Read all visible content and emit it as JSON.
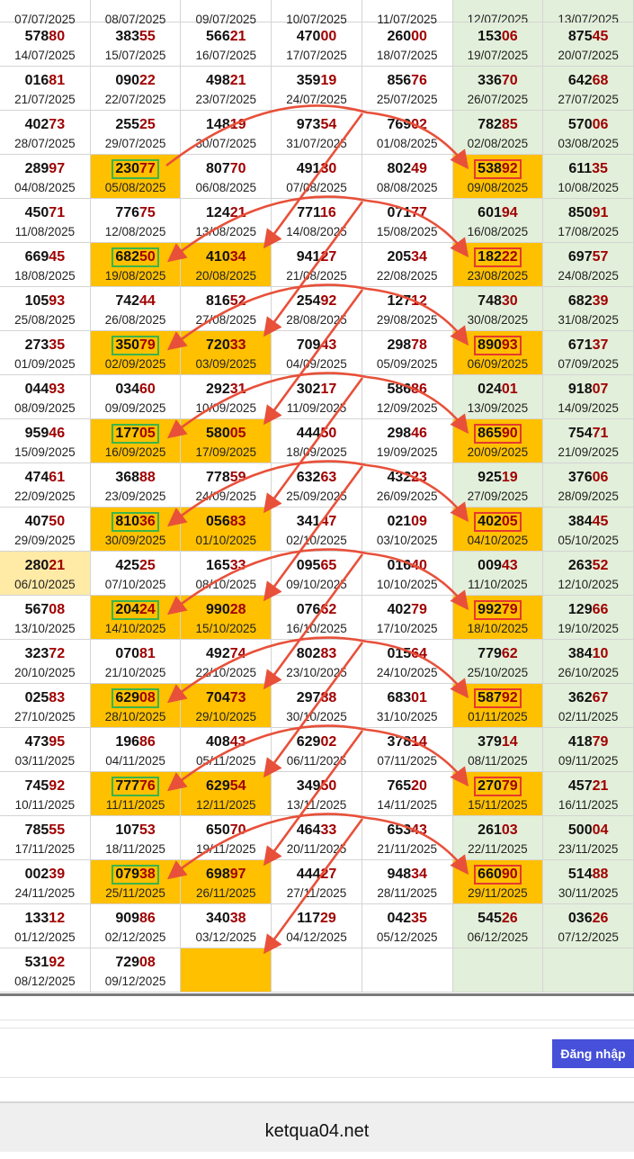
{
  "colors": {
    "yellow": "#ffc000",
    "green_column": "#e2efda",
    "red_digits": "#a00000",
    "arrow": "#e8503a",
    "green_box": "#3cb44b",
    "red_box": "#e5392f",
    "login_button": "#4650d8"
  },
  "table": {
    "rows": [
      {
        "cells": [
          {
            "num": "",
            "date": "07/07/2025"
          },
          {
            "num": "",
            "date": "08/07/2025"
          },
          {
            "num": "",
            "date": "09/07/2025"
          },
          {
            "num": "",
            "date": "10/07/2025"
          },
          {
            "num": "",
            "date": "11/07/2025"
          },
          {
            "num": "",
            "date": "12/07/2025"
          },
          {
            "num": "",
            "date": "13/07/2025"
          }
        ]
      },
      {
        "cells": [
          {
            "num": "57880",
            "date": "14/07/2025"
          },
          {
            "num": "38355",
            "date": "15/07/2025"
          },
          {
            "num": "56621",
            "date": "16/07/2025"
          },
          {
            "num": "47000",
            "date": "17/07/2025"
          },
          {
            "num": "26000",
            "date": "18/07/2025"
          },
          {
            "num": "15306",
            "date": "19/07/2025"
          },
          {
            "num": "87545",
            "date": "20/07/2025"
          }
        ]
      },
      {
        "cells": [
          {
            "num": "01681",
            "date": "21/07/2025"
          },
          {
            "num": "09022",
            "date": "22/07/2025"
          },
          {
            "num": "49821",
            "date": "23/07/2025"
          },
          {
            "num": "35919",
            "date": "24/07/2025"
          },
          {
            "num": "85676",
            "date": "25/07/2025"
          },
          {
            "num": "33670",
            "date": "26/07/2025"
          },
          {
            "num": "64268",
            "date": "27/07/2025"
          }
        ]
      },
      {
        "cells": [
          {
            "num": "40273",
            "date": "28/07/2025"
          },
          {
            "num": "25525",
            "date": "29/07/2025"
          },
          {
            "num": "14819",
            "date": "30/07/2025"
          },
          {
            "num": "97354",
            "date": "31/07/2025"
          },
          {
            "num": "76902",
            "date": "01/08/2025"
          },
          {
            "num": "78285",
            "date": "02/08/2025"
          },
          {
            "num": "57006",
            "date": "03/08/2025"
          }
        ]
      },
      {
        "cells": [
          {
            "num": "28997",
            "date": "04/08/2025"
          },
          {
            "num": "23077",
            "date": "05/08/2025",
            "hl": "green-box"
          },
          {
            "num": "80770",
            "date": "06/08/2025"
          },
          {
            "num": "49130",
            "date": "07/08/2025"
          },
          {
            "num": "80249",
            "date": "08/08/2025"
          },
          {
            "num": "53892",
            "date": "09/08/2025",
            "hl": "red-box"
          },
          {
            "num": "61135",
            "date": "10/08/2025"
          }
        ]
      },
      {
        "cells": [
          {
            "num": "45071",
            "date": "11/08/2025"
          },
          {
            "num": "77675",
            "date": "12/08/2025"
          },
          {
            "num": "12421",
            "date": "13/08/2025"
          },
          {
            "num": "77116",
            "date": "14/08/2025"
          },
          {
            "num": "07177",
            "date": "15/08/2025"
          },
          {
            "num": "60194",
            "date": "16/08/2025"
          },
          {
            "num": "85091",
            "date": "17/08/2025"
          }
        ]
      },
      {
        "cells": [
          {
            "num": "66945",
            "date": "18/08/2025"
          },
          {
            "num": "68250",
            "date": "19/08/2025",
            "hl": "green-box"
          },
          {
            "num": "41034",
            "date": "20/08/2025",
            "hl": "yellow"
          },
          {
            "num": "94127",
            "date": "21/08/2025"
          },
          {
            "num": "20534",
            "date": "22/08/2025"
          },
          {
            "num": "18222",
            "date": "23/08/2025",
            "hl": "red-box"
          },
          {
            "num": "69757",
            "date": "24/08/2025"
          }
        ]
      },
      {
        "cells": [
          {
            "num": "10593",
            "date": "25/08/2025"
          },
          {
            "num": "74244",
            "date": "26/08/2025"
          },
          {
            "num": "81652",
            "date": "27/08/2025"
          },
          {
            "num": "25492",
            "date": "28/08/2025"
          },
          {
            "num": "12712",
            "date": "29/08/2025"
          },
          {
            "num": "74830",
            "date": "30/08/2025"
          },
          {
            "num": "68239",
            "date": "31/08/2025"
          }
        ]
      },
      {
        "cells": [
          {
            "num": "27335",
            "date": "01/09/2025"
          },
          {
            "num": "35079",
            "date": "02/09/2025",
            "hl": "green-box"
          },
          {
            "num": "72033",
            "date": "03/09/2025",
            "hl": "yellow"
          },
          {
            "num": "70943",
            "date": "04/09/2025"
          },
          {
            "num": "29878",
            "date": "05/09/2025"
          },
          {
            "num": "89093",
            "date": "06/09/2025",
            "hl": "red-box"
          },
          {
            "num": "67137",
            "date": "07/09/2025"
          }
        ]
      },
      {
        "cells": [
          {
            "num": "04493",
            "date": "08/09/2025"
          },
          {
            "num": "03460",
            "date": "09/09/2025"
          },
          {
            "num": "29231",
            "date": "10/09/2025"
          },
          {
            "num": "30217",
            "date": "11/09/2025"
          },
          {
            "num": "58686",
            "date": "12/09/2025"
          },
          {
            "num": "02401",
            "date": "13/09/2025"
          },
          {
            "num": "91807",
            "date": "14/09/2025"
          }
        ]
      },
      {
        "cells": [
          {
            "num": "95946",
            "date": "15/09/2025"
          },
          {
            "num": "17705",
            "date": "16/09/2025",
            "hl": "green-box"
          },
          {
            "num": "58005",
            "date": "17/09/2025",
            "hl": "yellow"
          },
          {
            "num": "44450",
            "date": "18/09/2025"
          },
          {
            "num": "29846",
            "date": "19/09/2025"
          },
          {
            "num": "86590",
            "date": "20/09/2025",
            "hl": "red-box"
          },
          {
            "num": "75471",
            "date": "21/09/2025"
          }
        ]
      },
      {
        "cells": [
          {
            "num": "47461",
            "date": "22/09/2025"
          },
          {
            "num": "36888",
            "date": "23/09/2025"
          },
          {
            "num": "77859",
            "date": "24/09/2025"
          },
          {
            "num": "63263",
            "date": "25/09/2025"
          },
          {
            "num": "43223",
            "date": "26/09/2025"
          },
          {
            "num": "92519",
            "date": "27/09/2025"
          },
          {
            "num": "37606",
            "date": "28/09/2025"
          }
        ]
      },
      {
        "cells": [
          {
            "num": "40750",
            "date": "29/09/2025"
          },
          {
            "num": "81036",
            "date": "30/09/2025",
            "hl": "green-box"
          },
          {
            "num": "05683",
            "date": "01/10/2025",
            "hl": "yellow"
          },
          {
            "num": "34147",
            "date": "02/10/2025"
          },
          {
            "num": "02109",
            "date": "03/10/2025"
          },
          {
            "num": "40205",
            "date": "04/10/2025",
            "hl": "red-box"
          },
          {
            "num": "38445",
            "date": "05/10/2025"
          }
        ]
      },
      {
        "cells": [
          {
            "num": "28021",
            "date": "06/10/2025",
            "hl": "light-yellow"
          },
          {
            "num": "42525",
            "date": "07/10/2025"
          },
          {
            "num": "16533",
            "date": "08/10/2025"
          },
          {
            "num": "09565",
            "date": "09/10/2025"
          },
          {
            "num": "01640",
            "date": "10/10/2025"
          },
          {
            "num": "00943",
            "date": "11/10/2025"
          },
          {
            "num": "26352",
            "date": "12/10/2025"
          }
        ]
      },
      {
        "cells": [
          {
            "num": "56708",
            "date": "13/10/2025"
          },
          {
            "num": "20424",
            "date": "14/10/2025",
            "hl": "green-box"
          },
          {
            "num": "99028",
            "date": "15/10/2025",
            "hl": "yellow"
          },
          {
            "num": "07662",
            "date": "16/10/2025"
          },
          {
            "num": "40279",
            "date": "17/10/2025"
          },
          {
            "num": "99279",
            "date": "18/10/2025",
            "hl": "red-box"
          },
          {
            "num": "12966",
            "date": "19/10/2025"
          }
        ]
      },
      {
        "cells": [
          {
            "num": "32372",
            "date": "20/10/2025"
          },
          {
            "num": "07081",
            "date": "21/10/2025"
          },
          {
            "num": "49274",
            "date": "22/10/2025"
          },
          {
            "num": "80283",
            "date": "23/10/2025"
          },
          {
            "num": "01564",
            "date": "24/10/2025"
          },
          {
            "num": "77962",
            "date": "25/10/2025"
          },
          {
            "num": "38410",
            "date": "26/10/2025"
          }
        ]
      },
      {
        "cells": [
          {
            "num": "02583",
            "date": "27/10/2025"
          },
          {
            "num": "62908",
            "date": "28/10/2025",
            "hl": "green-box"
          },
          {
            "num": "70473",
            "date": "29/10/2025",
            "hl": "yellow"
          },
          {
            "num": "29788",
            "date": "30/10/2025"
          },
          {
            "num": "68301",
            "date": "31/10/2025"
          },
          {
            "num": "58792",
            "date": "01/11/2025",
            "hl": "red-box"
          },
          {
            "num": "36267",
            "date": "02/11/2025"
          }
        ]
      },
      {
        "cells": [
          {
            "num": "47395",
            "date": "03/11/2025"
          },
          {
            "num": "19686",
            "date": "04/11/2025"
          },
          {
            "num": "40843",
            "date": "05/11/2025"
          },
          {
            "num": "62902",
            "date": "06/11/2025"
          },
          {
            "num": "37814",
            "date": "07/11/2025"
          },
          {
            "num": "37914",
            "date": "08/11/2025"
          },
          {
            "num": "41879",
            "date": "09/11/2025"
          }
        ]
      },
      {
        "cells": [
          {
            "num": "74592",
            "date": "10/11/2025"
          },
          {
            "num": "77776",
            "date": "11/11/2025",
            "hl": "green-box"
          },
          {
            "num": "62954",
            "date": "12/11/2025",
            "hl": "yellow"
          },
          {
            "num": "34950",
            "date": "13/11/2025"
          },
          {
            "num": "76520",
            "date": "14/11/2025"
          },
          {
            "num": "27079",
            "date": "15/11/2025",
            "hl": "red-box"
          },
          {
            "num": "45721",
            "date": "16/11/2025"
          }
        ]
      },
      {
        "cells": [
          {
            "num": "78555",
            "date": "17/11/2025"
          },
          {
            "num": "10753",
            "date": "18/11/2025"
          },
          {
            "num": "65070",
            "date": "19/11/2025"
          },
          {
            "num": "46433",
            "date": "20/11/2025"
          },
          {
            "num": "65343",
            "date": "21/11/2025"
          },
          {
            "num": "26103",
            "date": "22/11/2025"
          },
          {
            "num": "50004",
            "date": "23/11/2025"
          }
        ]
      },
      {
        "cells": [
          {
            "num": "00239",
            "date": "24/11/2025"
          },
          {
            "num": "07938",
            "date": "25/11/2025",
            "hl": "green-box"
          },
          {
            "num": "69897",
            "date": "26/11/2025",
            "hl": "yellow"
          },
          {
            "num": "44427",
            "date": "27/11/2025"
          },
          {
            "num": "94834",
            "date": "28/11/2025"
          },
          {
            "num": "66090",
            "date": "29/11/2025",
            "hl": "red-box"
          },
          {
            "num": "51488",
            "date": "30/11/2025"
          }
        ]
      },
      {
        "cells": [
          {
            "num": "13312",
            "date": "01/12/2025"
          },
          {
            "num": "90986",
            "date": "02/12/2025"
          },
          {
            "num": "34038",
            "date": "03/12/2025"
          },
          {
            "num": "11729",
            "date": "04/12/2025"
          },
          {
            "num": "04235",
            "date": "05/12/2025"
          },
          {
            "num": "54526",
            "date": "06/12/2025"
          },
          {
            "num": "03626",
            "date": "07/12/2025"
          }
        ]
      },
      {
        "cells": [
          {
            "num": "53192",
            "date": "08/12/2025"
          },
          {
            "num": "72908",
            "date": "09/12/2025"
          },
          {
            "num": "",
            "date": "",
            "hl": "yellow"
          },
          {
            "num": "",
            "date": ""
          },
          {
            "num": "",
            "date": ""
          },
          {
            "num": "",
            "date": ""
          },
          {
            "num": "",
            "date": ""
          }
        ]
      }
    ]
  },
  "login_button": "Đăng nhập",
  "footer": {
    "site": "ketqua04.net"
  }
}
